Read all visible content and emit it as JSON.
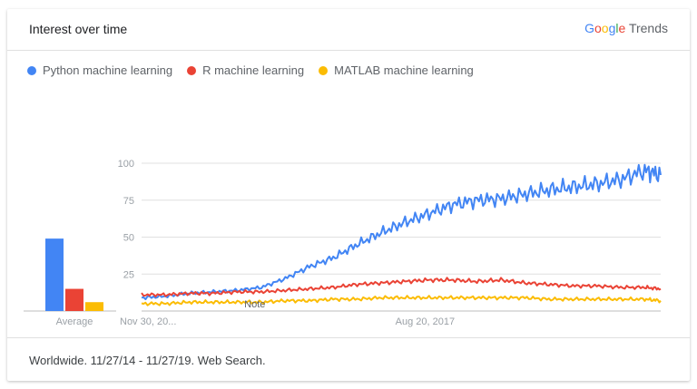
{
  "header": {
    "title": "Interest over time",
    "brand_google": "Google",
    "brand_trends": "Trends"
  },
  "colors": {
    "python": "#4285f4",
    "r": "#ea4335",
    "matlab": "#fbbc04",
    "google_blue": "#4285f4",
    "google_red": "#ea4335",
    "google_yellow": "#fbbc05",
    "google_green": "#34a853"
  },
  "footer": {
    "text": "Worldwide. 11/27/14 - 11/27/19. Web Search."
  },
  "chart_data": {
    "type": "line",
    "legend": [
      "Python machine learning",
      "R machine learning",
      "MATLAB machine learning"
    ],
    "legend_placement": "top-left",
    "ylim": [
      0,
      100
    ],
    "yticks": [
      25,
      50,
      75,
      100
    ],
    "x_tick_labels": [
      "Nov 30, 20...",
      "Aug 20, 2017"
    ],
    "x_tick_positions": [
      "2014-11-30",
      "2017-08-20"
    ],
    "x_range": [
      "2014-11-30",
      "2019-11-24"
    ],
    "note_label": "Note",
    "note_date": "2016-01-01",
    "averages": {
      "label": "Average",
      "values": [
        49,
        15,
        6
      ]
    },
    "series": [
      {
        "name": "Python machine learning",
        "x": [
          "2014-11-30",
          "2015-02-22",
          "2015-05-17",
          "2015-08-09",
          "2015-11-01",
          "2016-01-24",
          "2016-04-17",
          "2016-07-10",
          "2016-10-02",
          "2016-12-25",
          "2017-03-19",
          "2017-06-11",
          "2017-09-03",
          "2017-11-26",
          "2018-02-18",
          "2018-05-13",
          "2018-08-05",
          "2018-10-28",
          "2019-01-20",
          "2019-04-14",
          "2019-07-07",
          "2019-09-29",
          "2019-11-24"
        ],
        "values": [
          9,
          10,
          12,
          13,
          14,
          16,
          22,
          30,
          36,
          45,
          53,
          60,
          66,
          72,
          75,
          76,
          79,
          82,
          84,
          86,
          89,
          95,
          92
        ]
      },
      {
        "name": "R machine learning",
        "x": [
          "2014-11-30",
          "2015-02-22",
          "2015-05-17",
          "2015-08-09",
          "2015-11-01",
          "2016-01-24",
          "2016-04-17",
          "2016-07-10",
          "2016-10-02",
          "2016-12-25",
          "2017-03-19",
          "2017-06-11",
          "2017-09-03",
          "2017-11-26",
          "2018-02-18",
          "2018-05-13",
          "2018-08-05",
          "2018-10-28",
          "2019-01-20",
          "2019-04-14",
          "2019-07-07",
          "2019-09-29",
          "2019-11-24"
        ],
        "values": [
          11,
          11,
          12,
          12,
          13,
          13,
          14,
          15,
          16,
          18,
          19,
          20,
          21,
          21,
          20,
          21,
          19,
          18,
          17,
          17,
          16,
          16,
          15
        ]
      },
      {
        "name": "MATLAB machine learning",
        "x": [
          "2014-11-30",
          "2015-02-22",
          "2015-05-17",
          "2015-08-09",
          "2015-11-01",
          "2016-01-24",
          "2016-04-17",
          "2016-07-10",
          "2016-10-02",
          "2016-12-25",
          "2017-03-19",
          "2017-06-11",
          "2017-09-03",
          "2017-11-26",
          "2018-02-18",
          "2018-05-13",
          "2018-08-05",
          "2018-10-28",
          "2019-01-20",
          "2019-04-14",
          "2019-07-07",
          "2019-09-29",
          "2019-11-24"
        ],
        "values": [
          5,
          5,
          6,
          6,
          6,
          6,
          7,
          7,
          8,
          8,
          9,
          9,
          9,
          9,
          9,
          9,
          9,
          8,
          8,
          8,
          8,
          8,
          7
        ]
      }
    ]
  }
}
